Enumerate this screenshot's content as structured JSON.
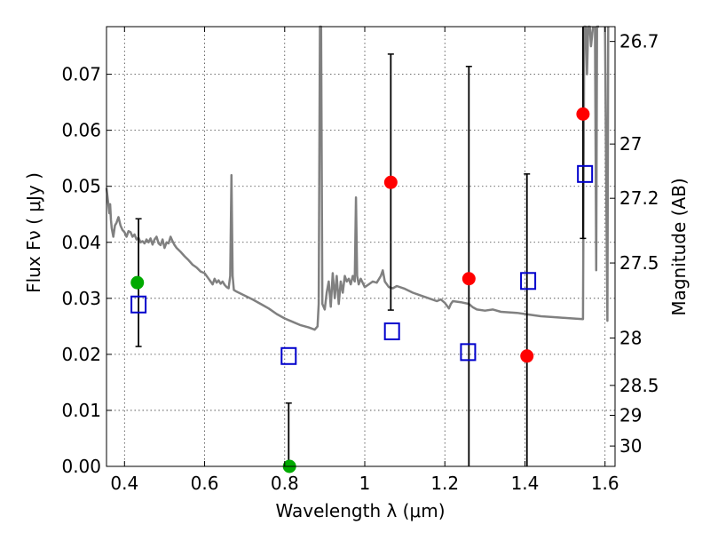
{
  "chart_data": {
    "type": "scatter",
    "title": "",
    "xlabel": "Wavelength  λ (μm)",
    "ylabel": "Flux  Fν  ( μJy )",
    "y2label": "Magnitude (AB)",
    "xlim": [
      0.355,
      1.625
    ],
    "ylim": [
      0.0,
      0.0785
    ],
    "grid": true,
    "x_ticks": [
      0.4,
      0.6,
      0.8,
      1.0,
      1.2,
      1.4,
      1.6
    ],
    "x_tick_labels": [
      "0.4",
      "0.6",
      "0.8",
      "1",
      "1.2",
      "1.4",
      "1.6"
    ],
    "y_ticks": [
      0.0,
      0.01,
      0.02,
      0.03,
      0.04,
      0.05,
      0.06,
      0.07
    ],
    "y_tick_labels": [
      "0.00",
      "0.01",
      "0.02",
      "0.03",
      "0.04",
      "0.05",
      "0.06",
      "0.07"
    ],
    "mag_ticks": [
      26.7,
      27,
      27.2,
      27.5,
      28,
      28.5,
      29,
      30
    ],
    "mag_tick_labels": [
      "26.7",
      "27",
      "27.2",
      "27.5",
      "28",
      "28.5",
      "29",
      "30"
    ],
    "colors": {
      "observed": "#ff0000",
      "detection": "#00aa00",
      "model": "#0000cc",
      "sed": "#808080",
      "errorbar": "#000000"
    },
    "series": [
      {
        "name": "observed flux (red)",
        "marker": "circle",
        "points": [
          {
            "x": 1.065,
            "y": 0.0507
          },
          {
            "x": 1.26,
            "y": 0.0335
          },
          {
            "x": 1.405,
            "y": 0.0197
          },
          {
            "x": 1.545,
            "y": 0.0629
          }
        ]
      },
      {
        "name": "observed flux (green)",
        "marker": "circle",
        "points": [
          {
            "x": 0.432,
            "y": 0.0328
          },
          {
            "x": 0.812,
            "y": 0.0
          }
        ]
      },
      {
        "name": "model flux",
        "marker": "square",
        "points": [
          {
            "x": 0.435,
            "y": 0.0289
          },
          {
            "x": 0.81,
            "y": 0.0197
          },
          {
            "x": 1.068,
            "y": 0.0241
          },
          {
            "x": 1.258,
            "y": 0.0204
          },
          {
            "x": 1.408,
            "y": 0.0331
          },
          {
            "x": 1.55,
            "y": 0.0522
          }
        ]
      },
      {
        "name": "error bars",
        "bars": [
          {
            "x": 0.435,
            "low": 0.0214,
            "high": 0.0442
          },
          {
            "x": 0.81,
            "low": 0.0,
            "high": 0.0113
          },
          {
            "x": 1.065,
            "low": 0.0279,
            "high": 0.0736
          },
          {
            "x": 1.26,
            "low": 0.0,
            "high": 0.0714
          },
          {
            "x": 1.405,
            "low": 0.0,
            "high": 0.0522
          },
          {
            "x": 1.545,
            "low": 0.0407,
            "high": 0.0785
          }
        ]
      },
      {
        "name": "best-fit SED",
        "line": [
          [
            0.355,
            0.0497
          ],
          [
            0.36,
            0.0465
          ],
          [
            0.362,
            0.0452
          ],
          [
            0.364,
            0.0468
          ],
          [
            0.366,
            0.044
          ],
          [
            0.368,
            0.0425
          ],
          [
            0.372,
            0.041
          ],
          [
            0.376,
            0.043
          ],
          [
            0.38,
            0.0435
          ],
          [
            0.385,
            0.0445
          ],
          [
            0.39,
            0.043
          ],
          [
            0.395,
            0.0422
          ],
          [
            0.4,
            0.0418
          ],
          [
            0.405,
            0.041
          ],
          [
            0.41,
            0.042
          ],
          [
            0.415,
            0.0418
          ],
          [
            0.42,
            0.041
          ],
          [
            0.425,
            0.0414
          ],
          [
            0.43,
            0.0405
          ],
          [
            0.435,
            0.0408
          ],
          [
            0.44,
            0.04
          ],
          [
            0.445,
            0.0402
          ],
          [
            0.45,
            0.0398
          ],
          [
            0.455,
            0.0405
          ],
          [
            0.46,
            0.04
          ],
          [
            0.465,
            0.0407
          ],
          [
            0.47,
            0.0396
          ],
          [
            0.475,
            0.0405
          ],
          [
            0.48,
            0.041
          ],
          [
            0.485,
            0.0398
          ],
          [
            0.49,
            0.0395
          ],
          [
            0.495,
            0.0405
          ],
          [
            0.5,
            0.039
          ],
          [
            0.505,
            0.04
          ],
          [
            0.51,
            0.0398
          ],
          [
            0.515,
            0.041
          ],
          [
            0.52,
            0.0402
          ],
          [
            0.525,
            0.0395
          ],
          [
            0.53,
            0.039
          ],
          [
            0.54,
            0.0383
          ],
          [
            0.55,
            0.0375
          ],
          [
            0.56,
            0.0368
          ],
          [
            0.57,
            0.036
          ],
          [
            0.58,
            0.0355
          ],
          [
            0.59,
            0.0348
          ],
          [
            0.6,
            0.0345
          ],
          [
            0.605,
            0.034
          ],
          [
            0.61,
            0.0335
          ],
          [
            0.615,
            0.033
          ],
          [
            0.62,
            0.0325
          ],
          [
            0.625,
            0.0335
          ],
          [
            0.63,
            0.0328
          ],
          [
            0.635,
            0.0332
          ],
          [
            0.64,
            0.0326
          ],
          [
            0.645,
            0.033
          ],
          [
            0.65,
            0.0324
          ],
          [
            0.655,
            0.032
          ],
          [
            0.66,
            0.0318
          ],
          [
            0.664,
            0.034
          ],
          [
            0.667,
            0.052
          ],
          [
            0.67,
            0.034
          ],
          [
            0.673,
            0.0315
          ],
          [
            0.68,
            0.0312
          ],
          [
            0.7,
            0.0305
          ],
          [
            0.72,
            0.0298
          ],
          [
            0.74,
            0.029
          ],
          [
            0.76,
            0.0282
          ],
          [
            0.78,
            0.0272
          ],
          [
            0.8,
            0.0264
          ],
          [
            0.82,
            0.0258
          ],
          [
            0.84,
            0.0252
          ],
          [
            0.86,
            0.0248
          ],
          [
            0.875,
            0.0244
          ],
          [
            0.882,
            0.025
          ],
          [
            0.885,
            0.029
          ],
          [
            0.888,
            0.08
          ],
          [
            0.891,
            0.08
          ],
          [
            0.894,
            0.029
          ],
          [
            0.9,
            0.028
          ],
          [
            0.905,
            0.031
          ],
          [
            0.91,
            0.033
          ],
          [
            0.915,
            0.0285
          ],
          [
            0.92,
            0.0345
          ],
          [
            0.925,
            0.03
          ],
          [
            0.93,
            0.034
          ],
          [
            0.935,
            0.029
          ],
          [
            0.94,
            0.033
          ],
          [
            0.945,
            0.031
          ],
          [
            0.95,
            0.034
          ],
          [
            0.955,
            0.033
          ],
          [
            0.96,
            0.0335
          ],
          [
            0.965,
            0.0325
          ],
          [
            0.97,
            0.034
          ],
          [
            0.975,
            0.033
          ],
          [
            0.978,
            0.048
          ],
          [
            0.981,
            0.034
          ],
          [
            0.985,
            0.0325
          ],
          [
            0.99,
            0.0335
          ],
          [
            1.0,
            0.032
          ],
          [
            1.01,
            0.0325
          ],
          [
            1.02,
            0.033
          ],
          [
            1.03,
            0.0328
          ],
          [
            1.04,
            0.034
          ],
          [
            1.045,
            0.035
          ],
          [
            1.05,
            0.033
          ],
          [
            1.06,
            0.032
          ],
          [
            1.07,
            0.0318
          ],
          [
            1.08,
            0.0322
          ],
          [
            1.1,
            0.0317
          ],
          [
            1.12,
            0.031
          ],
          [
            1.14,
            0.0305
          ],
          [
            1.16,
            0.03
          ],
          [
            1.18,
            0.0295
          ],
          [
            1.19,
            0.0298
          ],
          [
            1.2,
            0.0292
          ],
          [
            1.21,
            0.0282
          ],
          [
            1.215,
            0.029
          ],
          [
            1.22,
            0.0295
          ],
          [
            1.24,
            0.0293
          ],
          [
            1.26,
            0.029
          ],
          [
            1.27,
            0.0284
          ],
          [
            1.28,
            0.028
          ],
          [
            1.3,
            0.0278
          ],
          [
            1.32,
            0.028
          ],
          [
            1.34,
            0.0276
          ],
          [
            1.36,
            0.0275
          ],
          [
            1.38,
            0.0274
          ],
          [
            1.4,
            0.0272
          ],
          [
            1.42,
            0.027
          ],
          [
            1.44,
            0.0268
          ],
          [
            1.46,
            0.0267
          ],
          [
            1.48,
            0.0266
          ],
          [
            1.5,
            0.0265
          ],
          [
            1.52,
            0.0264
          ],
          [
            1.545,
            0.0263
          ],
          [
            1.548,
            0.08
          ],
          [
            1.552,
            0.08
          ],
          [
            1.555,
            0.07
          ],
          [
            1.558,
            0.08
          ],
          [
            1.562,
            0.08
          ],
          [
            1.565,
            0.075
          ],
          [
            1.57,
            0.08
          ]
        ]
      },
      {
        "name": "SED emission spikes",
        "line": [
          [
            1.575,
            0.08
          ],
          [
            1.578,
            0.035
          ],
          [
            1.58,
            0.08
          ],
          [
            1.585,
            0.08
          ]
        ]
      },
      {
        "name": "SED emission spike (edge)",
        "line": [
          [
            1.6,
            0.08
          ],
          [
            1.603,
            0.05
          ],
          [
            1.606,
            0.026
          ],
          [
            1.608,
            0.08
          ]
        ]
      }
    ]
  }
}
